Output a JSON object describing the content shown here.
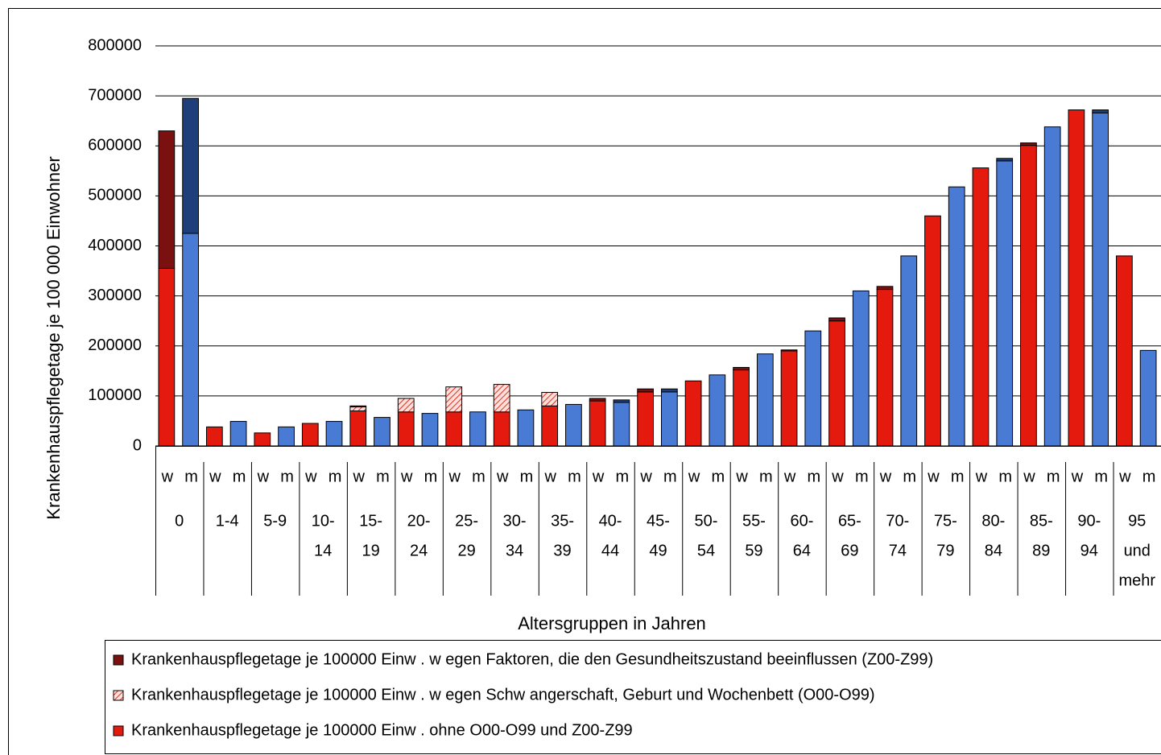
{
  "chart_data": {
    "type": "bar",
    "stacked": true,
    "y_label": "Krankenhauspflegetage je 100 000 Einwohner",
    "x_label": "Altersgruppen in Jahren",
    "categories": [
      "w",
      "m",
      "w",
      "m",
      "w",
      "m",
      "w",
      "m",
      "w",
      "m",
      "w",
      "m",
      "w",
      "m",
      "w",
      "m",
      "w",
      "m",
      "w",
      "m",
      "w",
      "m",
      "w",
      "m",
      "w",
      "m",
      "w",
      "m",
      "w",
      "m",
      "w",
      "m",
      "w",
      "m",
      "w",
      "m",
      "w",
      "m",
      "w",
      "m",
      "w",
      "m"
    ],
    "groups": [
      [
        "0"
      ],
      [
        "1-4"
      ],
      [
        "5-9"
      ],
      [
        "10-",
        "14"
      ],
      [
        "15-",
        "19"
      ],
      [
        "20-",
        "24"
      ],
      [
        "25-",
        "29"
      ],
      [
        "30-",
        "34"
      ],
      [
        "35-",
        "39"
      ],
      [
        "40-",
        "44"
      ],
      [
        "45-",
        "49"
      ],
      [
        "50-",
        "54"
      ],
      [
        "55-",
        "59"
      ],
      [
        "60-",
        "64"
      ],
      [
        "65-",
        "69"
      ],
      [
        "70-",
        "74"
      ],
      [
        "75-",
        "79"
      ],
      [
        "80-",
        "84"
      ],
      [
        "85-",
        "89"
      ],
      [
        "90-",
        "94"
      ],
      [
        "95",
        "und",
        "mehr"
      ]
    ],
    "series": [
      {
        "name": "Krankenhauspflegetage je 100000 Einw . w egen Faktoren, die den Gesundheitszustand beeinflussen (Z00-Z99)",
        "color": "#7a1010",
        "colors": [
          "#7a1010",
          "#1f3f7a",
          "#7a1010",
          "#1f3f7a",
          "#7a1010",
          "#1f3f7a",
          "#7a1010",
          "#1f3f7a",
          "#7a1010",
          "#1f3f7a",
          "#7a1010",
          "#1f3f7a",
          "#7a1010",
          "#1f3f7a",
          "#7a1010",
          "#1f3f7a",
          "#7a1010",
          "#1f3f7a",
          "#7a1010",
          "#1f3f7a",
          "#7a1010",
          "#1f3f7a",
          "#7a1010",
          "#1f3f7a",
          "#7a1010",
          "#1f3f7a",
          "#7a1010",
          "#1f3f7a",
          "#7a1010",
          "#1f3f7a",
          "#7a1010",
          "#1f3f7a",
          "#7a1010",
          "#1f3f7a",
          "#7a1010",
          "#1f3f7a",
          "#7a1010",
          "#1f3f7a",
          "#7a1010",
          "#1f3f7a",
          "#7a1010",
          "#1f3f7a"
        ],
        "values": [
          275000,
          270000,
          null,
          null,
          null,
          null,
          null,
          null,
          2000,
          null,
          null,
          null,
          null,
          null,
          null,
          null,
          null,
          null,
          5000,
          5000,
          6000,
          6000,
          null,
          null,
          5000,
          null,
          2000,
          null,
          6000,
          null,
          6000,
          null,
          null,
          null,
          null,
          5000,
          5000,
          null,
          null,
          6000,
          null,
          null
        ]
      },
      {
        "name": "Krankenhauspflegetage je 100000 Einw . w egen Schw angerschaft, Geburt und Wochenbett (O00-O99)",
        "color": "#e03020",
        "pattern": "hatch",
        "values": [
          null,
          null,
          null,
          null,
          null,
          null,
          null,
          null,
          8000,
          null,
          27000,
          null,
          50000,
          null,
          55000,
          null,
          27000,
          null,
          null,
          null,
          null,
          null,
          null,
          null,
          null,
          null,
          null,
          null,
          null,
          null,
          null,
          null,
          null,
          null,
          null,
          null,
          null,
          null,
          null,
          null,
          null,
          null
        ]
      },
      {
        "name": "Krankenhauspflegetage je 100000 Einw . ohne O00-O99 und Z00-Z99",
        "color": "#000000",
        "colors": [
          "#e41a0e",
          "#4a7bd4",
          "#e41a0e",
          "#4a7bd4",
          "#e41a0e",
          "#4a7bd4",
          "#e41a0e",
          "#4a7bd4",
          "#e41a0e",
          "#4a7bd4",
          "#e41a0e",
          "#4a7bd4",
          "#e41a0e",
          "#4a7bd4",
          "#e41a0e",
          "#4a7bd4",
          "#e41a0e",
          "#4a7bd4",
          "#e41a0e",
          "#4a7bd4",
          "#e41a0e",
          "#4a7bd4",
          "#e41a0e",
          "#4a7bd4",
          "#e41a0e",
          "#4a7bd4",
          "#e41a0e",
          "#4a7bd4",
          "#e41a0e",
          "#4a7bd4",
          "#e41a0e",
          "#4a7bd4",
          "#e41a0e",
          "#4a7bd4",
          "#e41a0e",
          "#4a7bd4",
          "#e41a0e",
          "#4a7bd4",
          "#e41a0e",
          "#4a7bd4",
          "#e41a0e",
          "#4a7bd4"
        ],
        "values": [
          355000,
          425000,
          38000,
          49000,
          26000,
          38000,
          45000,
          49000,
          70000,
          57000,
          68000,
          65000,
          68000,
          68000,
          68000,
          72000,
          80000,
          83000,
          90000,
          87000,
          108000,
          108000,
          130000,
          142000,
          152000,
          184000,
          190000,
          230000,
          250000,
          310000,
          313000,
          380000,
          460000,
          518000,
          556000,
          570000,
          601000,
          638000,
          672000,
          666000,
          380000,
          191000
        ]
      }
    ],
    "ylim": [
      0,
      800000
    ],
    "yticks": [
      0,
      100000,
      200000,
      300000,
      400000,
      500000,
      600000,
      700000,
      800000
    ],
    "grid": true,
    "legend": "bottom"
  }
}
